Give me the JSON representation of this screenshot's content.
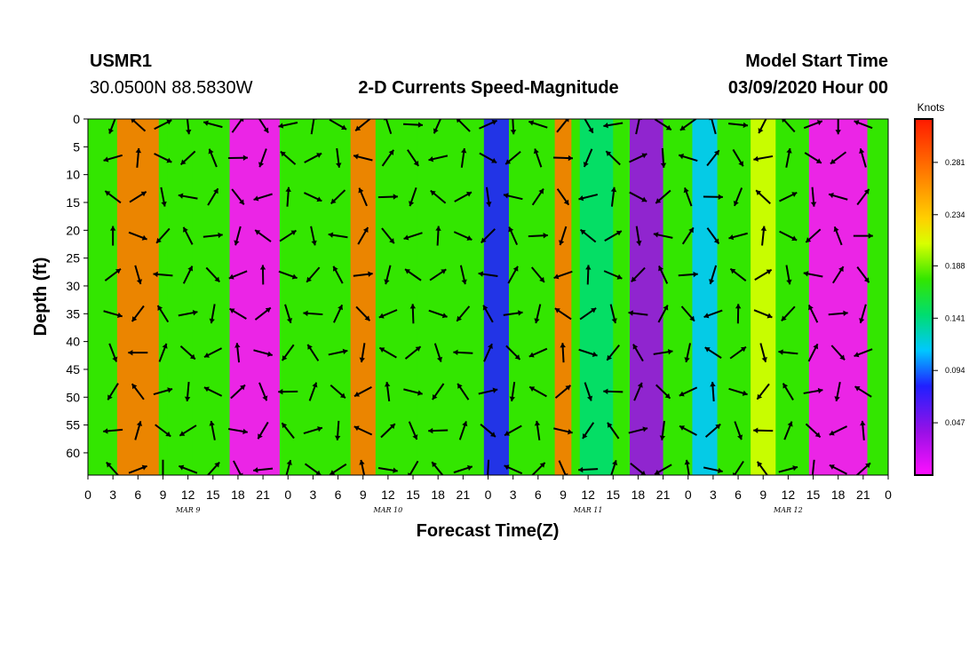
{
  "header": {
    "station_id": "USMR1",
    "location": "30.0500N 88.5830W",
    "title": "2-D Currents Speed-Magnitude",
    "model_label": "Model Start Time",
    "model_time": "03/09/2020 Hour 00"
  },
  "chart_data": {
    "type": "heatmap",
    "title": "2-D Currents Speed-Magnitude",
    "xlabel": "Forecast Time(Z)",
    "ylabel": "Depth (ft)",
    "x_ticks": [
      "0",
      "3",
      "6",
      "9",
      "12",
      "15",
      "18",
      "21",
      "0",
      "3",
      "6",
      "9",
      "12",
      "15",
      "18",
      "21",
      "0",
      "3",
      "6",
      "9",
      "12",
      "15",
      "18",
      "21",
      "0",
      "3",
      "6",
      "9",
      "12",
      "15",
      "18",
      "21",
      "0"
    ],
    "x_range_hours": [
      0,
      96
    ],
    "day_labels": [
      {
        "label": "MAR 9",
        "hour": 12
      },
      {
        "label": "MAR 10",
        "hour": 36
      },
      {
        "label": "MAR 11",
        "hour": 60
      },
      {
        "label": "MAR 12",
        "hour": 84
      }
    ],
    "y_ticks": [
      "0",
      "5",
      "10",
      "15",
      "20",
      "25",
      "30",
      "35",
      "40",
      "45",
      "50",
      "55",
      "60"
    ],
    "y_range_ft": [
      0,
      64
    ],
    "colorbar": {
      "unit": "Knots",
      "labels": [
        "0.281",
        "0.234",
        "0.188",
        "0.141",
        "0.094",
        "0.047"
      ],
      "range": [
        0.0,
        0.32
      ]
    },
    "speed_bands": [
      {
        "hour_center": 6,
        "hour_width": 5,
        "speed": 0.3
      },
      {
        "hour_center": 11,
        "hour_width": 3,
        "speed": 0.17
      },
      {
        "hour_center": 20,
        "hour_width": 6,
        "speed": 0.03
      },
      {
        "hour_center": 33,
        "hour_width": 3,
        "speed": 0.31
      },
      {
        "hour_center": 42,
        "hour_width": 5,
        "speed": 0.17
      },
      {
        "hour_center": 49,
        "hour_width": 3,
        "speed": 0.08
      },
      {
        "hour_center": 57,
        "hour_width": 2,
        "speed": 0.27
      },
      {
        "hour_center": 61,
        "hour_width": 4,
        "speed": 0.16
      },
      {
        "hour_center": 67,
        "hour_width": 4,
        "speed": 0.05
      },
      {
        "hour_center": 74,
        "hour_width": 3,
        "speed": 0.12
      },
      {
        "hour_center": 81,
        "hour_width": 3,
        "speed": 0.22
      },
      {
        "hour_center": 90,
        "hour_width": 7,
        "speed": 0.02
      }
    ],
    "vector_grid": {
      "hour_step": 3,
      "depths_ft": [
        1,
        7,
        14,
        21,
        28,
        35,
        42,
        49,
        56,
        63
      ],
      "arrow_length_ft_equiv": 5
    }
  }
}
